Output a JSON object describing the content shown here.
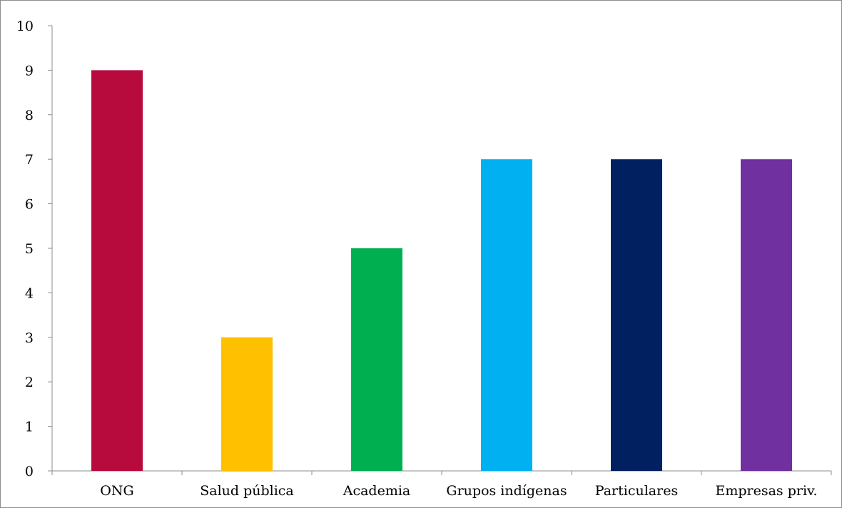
{
  "chart_data": {
    "type": "bar",
    "title": "",
    "xlabel": "",
    "ylabel": "",
    "categories": [
      "ONG",
      "Salud pública",
      "Academia",
      "Grupos indígenas",
      "Particulares",
      "Empresas priv."
    ],
    "values": [
      9,
      3,
      5,
      7,
      7,
      7
    ],
    "colors": [
      "#b80b3d",
      "#ffc000",
      "#00b050",
      "#00b0f0",
      "#002060",
      "#7030a0"
    ],
    "ylim": [
      0,
      10
    ],
    "yticks": [
      0,
      1,
      2,
      3,
      4,
      5,
      6,
      7,
      8,
      9,
      10
    ],
    "grid": false,
    "legend": "none",
    "axis_color": "#8c8c8c"
  }
}
